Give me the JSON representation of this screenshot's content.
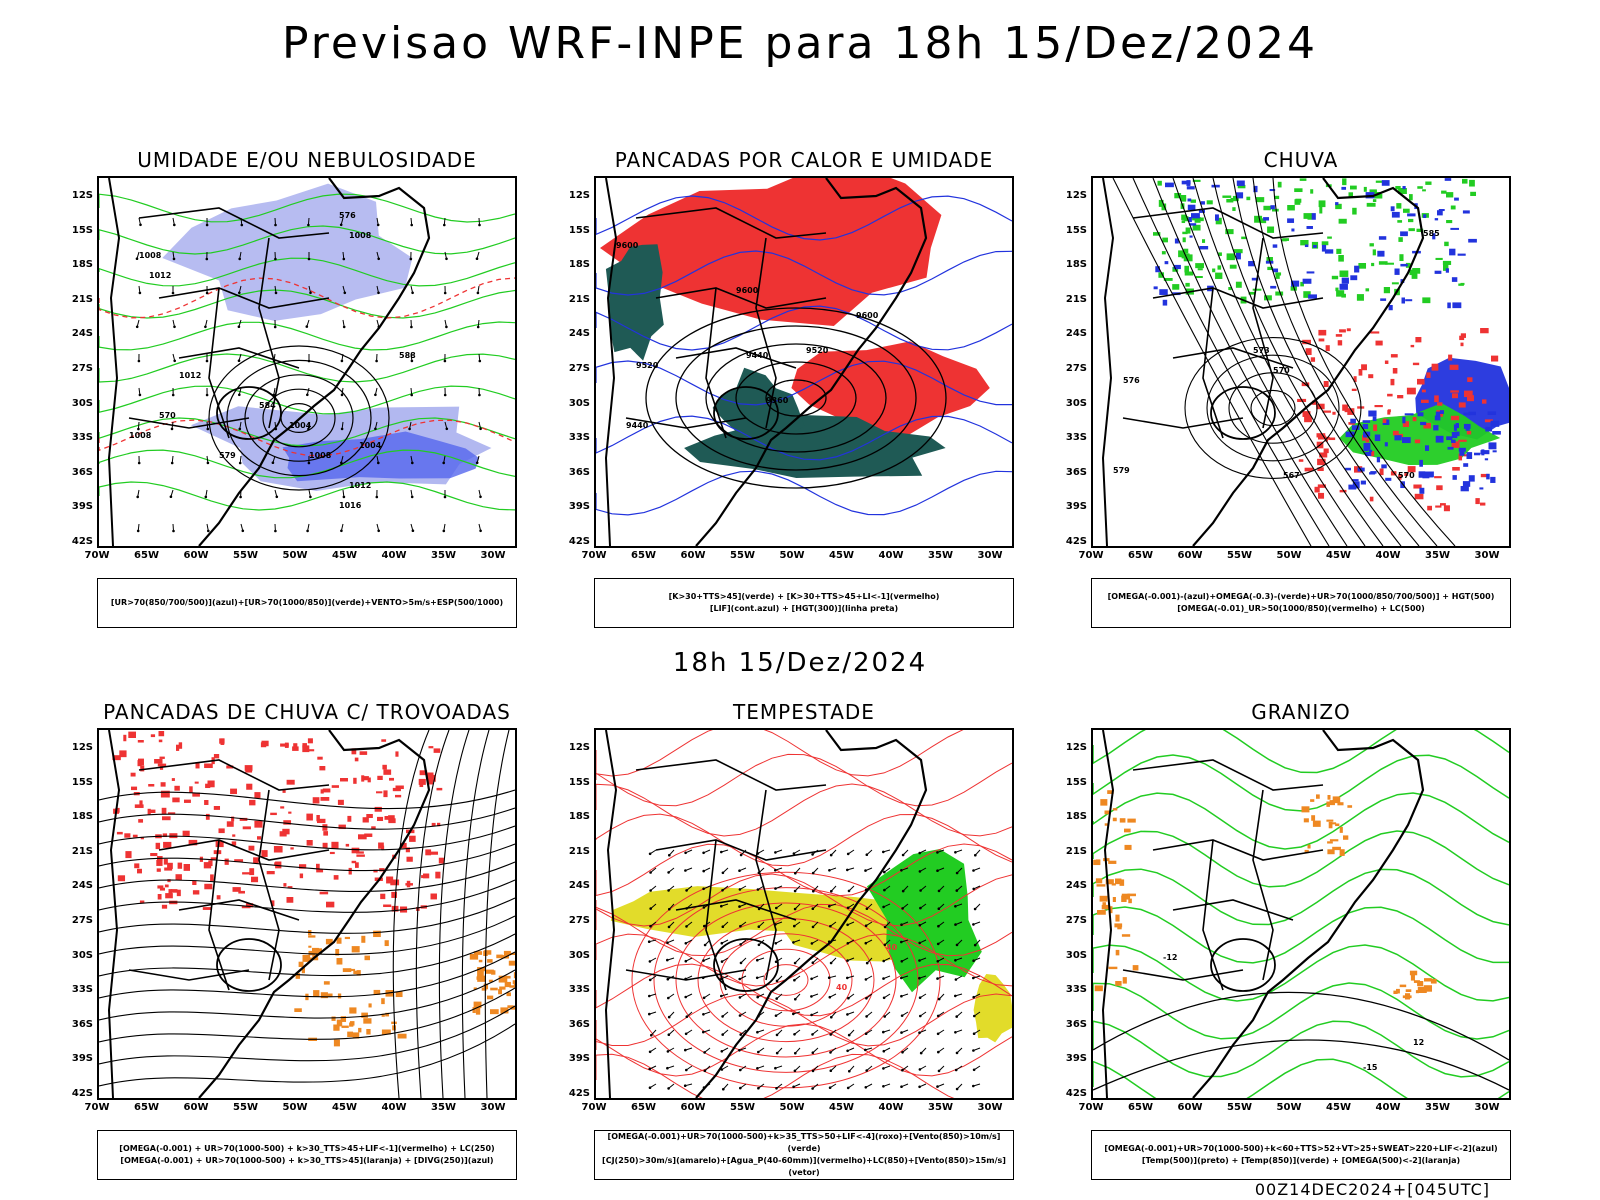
{
  "title": "Previsao WRF-INPE  para 18h 15/Dez/2024",
  "mid_title": "18h 15/Dez/2024",
  "footer": "00Z14DEC2024+[045UTC]",
  "axes": {
    "lat_labels": [
      "12S",
      "15S",
      "18S",
      "21S",
      "24S",
      "27S",
      "30S",
      "33S",
      "36S",
      "39S",
      "42S"
    ],
    "lon_labels": [
      "70W",
      "65W",
      "60W",
      "55W",
      "50W",
      "45W",
      "40W",
      "35W",
      "30W"
    ]
  },
  "colors": {
    "blue": "#2233dd",
    "green": "#22cc22",
    "red": "#ee3333",
    "darkteal": "#1f5a55",
    "lightblue": "#aab0ee",
    "yellow": "#e2dc2a",
    "orange": "#ee8822",
    "black": "#000000"
  },
  "panels": [
    {
      "title": "UMIDADE E/OU NEBULOSIDADE",
      "legend": [
        "[UR>70(850/700/500)](azul)+[UR>70(1000/850)](verde)+VENTO>5m/s+ESP(500/1000)"
      ],
      "contour_labels": [
        "1008",
        "1008",
        "1012",
        "1012",
        "1004",
        "1004",
        "1008",
        "1008",
        "1016",
        "1012",
        "576",
        "584",
        "588",
        "570",
        "579"
      ]
    },
    {
      "title": "PANCADAS POR CALOR E UMIDADE",
      "legend": [
        "[K>30+TTS>45](verde) + [K>30+TTS>45+LI<-1](vermelho)",
        "[LIF](cont.azul) + [HGT(300)](linha preta)"
      ],
      "contour_labels": [
        "9600",
        "9600",
        "9600",
        "9520",
        "9440",
        "9360",
        "9520",
        "9440"
      ]
    },
    {
      "title": "CHUVA",
      "legend": [
        "[OMEGA(-0.001)-(azul)+OMEGA(-0.3)-(verde)+UR>70(1000/850/700/500)] + HGT(500)",
        "[OMEGA(-0.01)_UR>50(1000/850)(vermelho) + LC(500)"
      ],
      "contour_labels": [
        "585",
        "576",
        "573",
        "570",
        "579",
        "567",
        "570"
      ]
    },
    {
      "title": "PANCADAS DE CHUVA C/ TROVOADAS",
      "legend": [
        "[OMEGA(-0.001) + UR>70(1000-500) + k>30_TTS>45+LIF<-1](vermelho) + LC(250)",
        "[OMEGA(-0.001) + UR>70(1000-500) + k>30_TTS>45](laranja) + [DIVG(250)](azul)"
      ],
      "contour_labels": []
    },
    {
      "title": "TEMPESTADE",
      "legend": [
        "[OMEGA(-0.001)+UR>70(1000-500)+k>35_TTS>50+LIF<-4](roxo)+[Vento(850)>10m/s](verde)",
        "[CJ(250)>30m/s](amarelo)+[Agua_P(40-60mm)](vermelho)+LC(850)+[Vento(850)>15m/s](vetor)"
      ],
      "contour_labels": [
        "40",
        "40",
        "40"
      ]
    },
    {
      "title": "GRANIZO",
      "legend": [
        "[OMEGA(-0.001)+UR>70(1000-500)+k<60+TTS>52+VT>25+SWEAT>220+LIF<-2](azul)",
        "[Temp(500)](preto) + [Temp(850)](verde) + [OMEGA(500)<-2](laranja)"
      ],
      "contour_labels": [
        "-12",
        "-15",
        "12"
      ]
    }
  ]
}
